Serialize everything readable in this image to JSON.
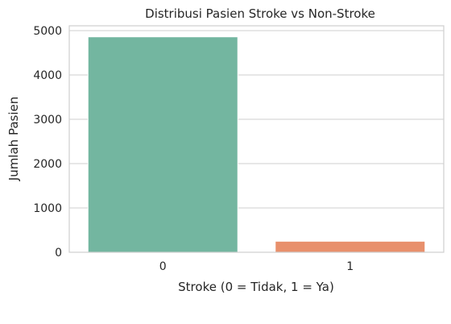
{
  "chart_data": {
    "type": "bar",
    "title": "Distribusi Pasien Stroke vs Non-Stroke",
    "xlabel": "Stroke (0 = Tidak, 1 = Ya)",
    "ylabel": "Jumlah Pasien",
    "categories": [
      "0",
      "1"
    ],
    "values": [
      4861,
      249
    ],
    "colors": [
      "#73b6a0",
      "#e8906c"
    ],
    "ylim": [
      0,
      5110
    ],
    "yticks": [
      0,
      1000,
      2000,
      3000,
      4000,
      5000
    ],
    "grid": true,
    "legend": "none"
  }
}
